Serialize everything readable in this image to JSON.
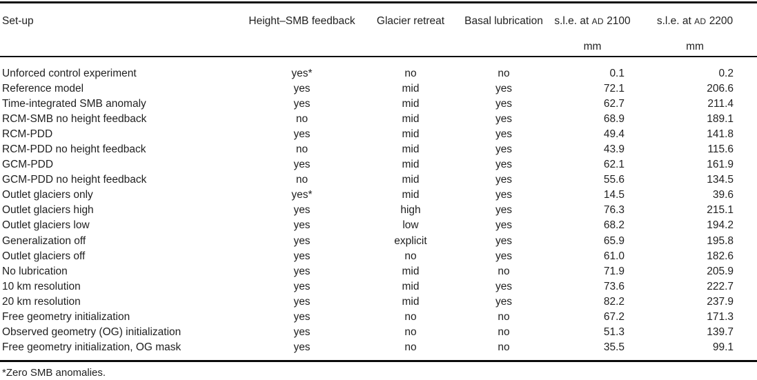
{
  "table": {
    "columns": [
      {
        "label": "Set-up"
      },
      {
        "label": "Height–SMB feedback"
      },
      {
        "label": "Glacier retreat"
      },
      {
        "label": "Basal lubrication"
      },
      {
        "pre": "s.l.e. at",
        "era": "AD",
        "year": "2100",
        "unit": "mm"
      },
      {
        "pre": "s.l.e. at",
        "era": "AD",
        "year": "2200",
        "unit": "mm"
      }
    ],
    "rows": [
      [
        "Unforced control experiment",
        "yes*",
        "no",
        "no",
        "0.1",
        "0.2"
      ],
      [
        "Reference model",
        "yes",
        "mid",
        "yes",
        "72.1",
        "206.6"
      ],
      [
        "Time-integrated SMB anomaly",
        "yes",
        "mid",
        "yes",
        "62.7",
        "211.4"
      ],
      [
        "RCM-SMB no height feedback",
        "no",
        "mid",
        "yes",
        "68.9",
        "189.1"
      ],
      [
        "RCM-PDD",
        "yes",
        "mid",
        "yes",
        "49.4",
        "141.8"
      ],
      [
        "RCM-PDD no height feedback",
        "no",
        "mid",
        "yes",
        "43.9",
        "115.6"
      ],
      [
        "GCM-PDD",
        "yes",
        "mid",
        "yes",
        "62.1",
        "161.9"
      ],
      [
        "GCM-PDD no height feedback",
        "no",
        "mid",
        "yes",
        "55.6",
        "134.5"
      ],
      [
        "Outlet glaciers only",
        "yes*",
        "mid",
        "yes",
        "14.5",
        "39.6"
      ],
      [
        "Outlet glaciers high",
        "yes",
        "high",
        "yes",
        "76.3",
        "215.1"
      ],
      [
        "Outlet glaciers low",
        "yes",
        "low",
        "yes",
        "68.2",
        "194.2"
      ],
      [
        "Generalization off",
        "yes",
        "explicit",
        "yes",
        "65.9",
        "195.8"
      ],
      [
        "Outlet glaciers off",
        "yes",
        "no",
        "yes",
        "61.0",
        "182.6"
      ],
      [
        "No lubrication",
        "yes",
        "mid",
        "no",
        "71.9",
        "205.9"
      ],
      [
        "10 km resolution",
        "yes",
        "mid",
        "yes",
        "73.6",
        "222.7"
      ],
      [
        "20 km resolution",
        "yes",
        "mid",
        "yes",
        "82.2",
        "237.9"
      ],
      [
        "Free geometry initialization",
        "yes",
        "no",
        "no",
        "67.2",
        "171.3"
      ],
      [
        "Observed geometry (OG) initialization",
        "yes",
        "no",
        "no",
        "51.3",
        "139.7"
      ],
      [
        "Free geometry initialization, OG mask",
        "yes",
        "no",
        "no",
        "35.5",
        "99.1"
      ]
    ],
    "footnote": "*Zero SMB anomalies."
  },
  "colors": {
    "text": "#1f1f1f",
    "rule": "#0a0a0a",
    "background": "#ffffff"
  }
}
